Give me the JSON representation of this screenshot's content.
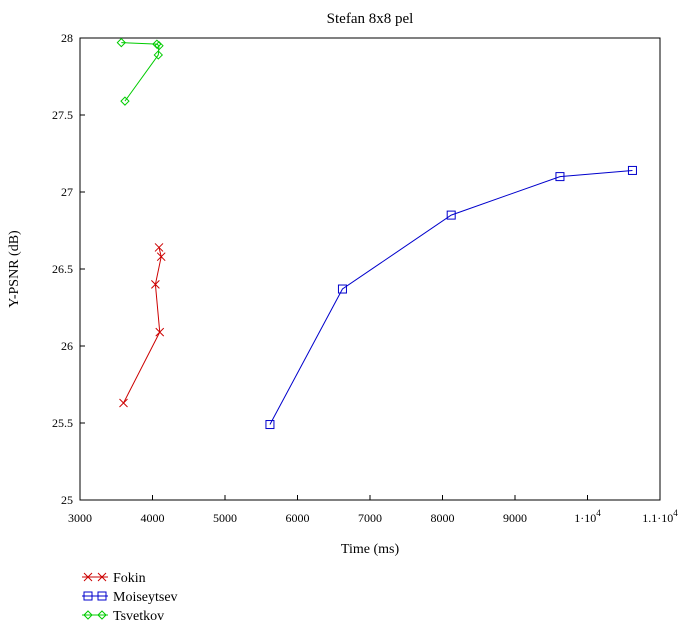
{
  "chart_data": {
    "type": "line",
    "title": "Stefan 8x8 pel",
    "xlabel": "Time (ms)",
    "ylabel": "Y-PSNR (dB)",
    "xlim": [
      3000,
      11000
    ],
    "ylim": [
      25,
      28
    ],
    "grid": false,
    "legend_position": "bottom-left",
    "x_ticks": [
      {
        "value": 3000,
        "label": "3000"
      },
      {
        "value": 4000,
        "label": "4000"
      },
      {
        "value": 5000,
        "label": "5000"
      },
      {
        "value": 6000,
        "label": "6000"
      },
      {
        "value": 7000,
        "label": "7000"
      },
      {
        "value": 8000,
        "label": "8000"
      },
      {
        "value": 9000,
        "label": "9000"
      },
      {
        "value": 10000,
        "label": "1·10",
        "exponent": "4"
      },
      {
        "value": 11000,
        "label": "1.1·10",
        "exponent": "4"
      }
    ],
    "y_ticks": [
      {
        "value": 25,
        "label": "25"
      },
      {
        "value": 25.5,
        "label": "25.5"
      },
      {
        "value": 26,
        "label": "26"
      },
      {
        "value": 26.5,
        "label": "26.5"
      },
      {
        "value": 27,
        "label": "27"
      },
      {
        "value": 27.5,
        "label": "27.5"
      },
      {
        "value": 28,
        "label": "28"
      }
    ],
    "series": [
      {
        "name": "Fokin",
        "color": "#cc0000",
        "marker": "x",
        "x": [
          3600,
          4100,
          4040,
          4120,
          4090
        ],
        "y": [
          25.63,
          26.09,
          26.4,
          26.58,
          26.64
        ]
      },
      {
        "name": "Moiseytsev",
        "color": "#0000cc",
        "marker": "square",
        "x": [
          5620,
          6620,
          8120,
          9620,
          10620
        ],
        "y": [
          25.49,
          26.37,
          26.85,
          27.1,
          27.14
        ]
      },
      {
        "name": "Tsvetkov",
        "color": "#00cc00",
        "marker": "diamond",
        "x": [
          3620,
          4080,
          4090,
          4060,
          3570
        ],
        "y": [
          27.59,
          27.89,
          27.95,
          27.96,
          27.97
        ]
      }
    ]
  }
}
